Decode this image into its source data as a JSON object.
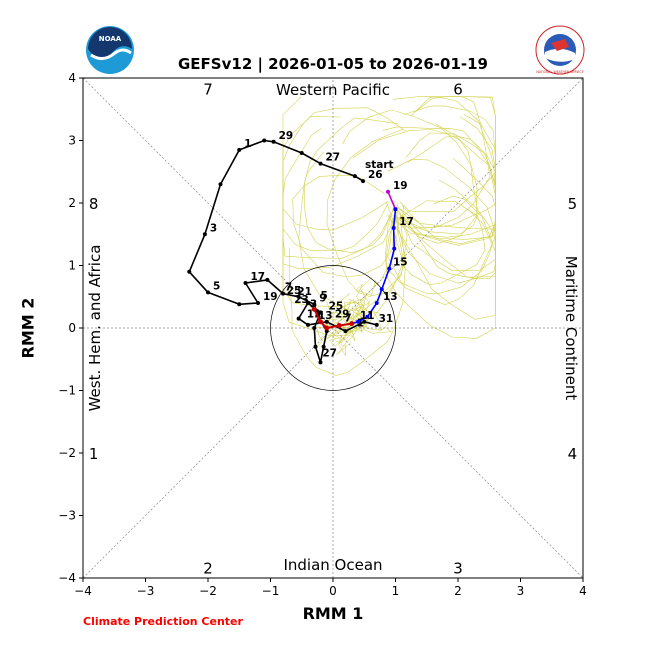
{
  "header": {
    "title": "GEFSv12 | 2026-01-05 to 2026-01-19",
    "credit": "Climate Prediction Center",
    "left_logo_text": "NOAA",
    "right_logo_text": "NATIONAL WEATHER SERVICE"
  },
  "chart_data": {
    "type": "line",
    "xlabel": "RMM 1",
    "ylabel": "RMM 2",
    "xlim": [
      -4,
      4
    ],
    "ylim": [
      -4,
      4
    ],
    "xticks": [
      "−4",
      "−3",
      "−2",
      "−1",
      "0",
      "1",
      "2",
      "3",
      "4"
    ],
    "yticks": [
      "−4",
      "−3",
      "−2",
      "−1",
      "0",
      "1",
      "2",
      "3",
      "4"
    ],
    "grid": false,
    "region_labels": {
      "top": "Western Pacific",
      "bottom": "Indian Ocean",
      "left": "West. Hem. and Africa",
      "right": "Maritime Continent"
    },
    "phase_labels": [
      {
        "text": "7",
        "x": -2.0,
        "y": 3.83
      },
      {
        "text": "6",
        "x": 2.0,
        "y": 3.83
      },
      {
        "text": "8",
        "x": -3.83,
        "y": 2.0
      },
      {
        "text": "5",
        "x": 3.83,
        "y": 2.0
      },
      {
        "text": "1",
        "x": -3.83,
        "y": -2.0
      },
      {
        "text": "4",
        "x": 3.83,
        "y": -2.0
      },
      {
        "text": "2",
        "x": -2.0,
        "y": -3.83
      },
      {
        "text": "3",
        "x": 2.0,
        "y": -3.83
      }
    ],
    "unit_circle_radius": 1,
    "colors": {
      "observed": "#000000",
      "start_segment": "#cc00cc",
      "forecast_mean": "#0000ff",
      "ensemble": "#cccc33",
      "ensemble_core": "#cc0000",
      "credit": "#ff0000"
    },
    "start_label": "start",
    "observed": {
      "points": [
        [
          0.48,
          2.35
        ],
        [
          0.35,
          2.43
        ],
        [
          -0.2,
          2.63
        ],
        [
          -0.5,
          2.8
        ],
        [
          -0.95,
          2.98
        ],
        [
          -1.1,
          3.0
        ],
        [
          -1.5,
          2.85
        ],
        [
          -1.8,
          2.3
        ],
        [
          -2.05,
          1.5
        ],
        [
          -2.3,
          0.9
        ],
        [
          -2.0,
          0.57
        ],
        [
          -1.5,
          0.38
        ],
        [
          -1.2,
          0.4
        ],
        [
          -1.4,
          0.72
        ],
        [
          -1.05,
          0.77
        ],
        [
          -0.8,
          0.55
        ],
        [
          -0.55,
          0.5
        ],
        [
          -0.3,
          0.38
        ],
        [
          -0.25,
          0.2
        ],
        [
          -0.1,
          -0.05
        ],
        [
          -0.15,
          -0.3
        ],
        [
          -0.2,
          -0.55
        ],
        [
          -0.28,
          -0.3
        ],
        [
          -0.3,
          0.0
        ],
        [
          -0.2,
          0.25
        ],
        [
          -0.4,
          0.4
        ],
        [
          -0.55,
          0.15
        ],
        [
          -0.4,
          0.05
        ],
        [
          -0.1,
          0.1
        ],
        [
          0.2,
          -0.05
        ],
        [
          0.5,
          0.1
        ],
        [
          0.7,
          0.05
        ]
      ],
      "labels": [
        {
          "text": "26",
          "x": 0.48,
          "y": 2.35
        },
        {
          "text": "27",
          "x": -0.2,
          "y": 2.63
        },
        {
          "text": "29",
          "x": -0.95,
          "y": 2.98
        },
        {
          "text": "1",
          "x": -1.5,
          "y": 2.85
        },
        {
          "text": "3",
          "x": -2.05,
          "y": 1.5
        },
        {
          "text": "5",
          "x": -2.0,
          "y": 0.57
        },
        {
          "text": "17",
          "x": -1.4,
          "y": 0.72
        },
        {
          "text": "19",
          "x": -1.2,
          "y": 0.4
        },
        {
          "text": "7",
          "x": -0.85,
          "y": 0.55
        },
        {
          "text": "25",
          "x": -0.82,
          "y": 0.5
        },
        {
          "text": "21",
          "x": -0.65,
          "y": 0.48
        },
        {
          "text": "23",
          "x": -0.7,
          "y": 0.35
        },
        {
          "text": "9",
          "x": -0.3,
          "y": 0.38
        },
        {
          "text": "5",
          "x": -0.28,
          "y": 0.42
        },
        {
          "text": "3",
          "x": -0.45,
          "y": 0.28
        },
        {
          "text": "25",
          "x": -0.15,
          "y": 0.25
        },
        {
          "text": "11",
          "x": -0.5,
          "y": 0.12
        },
        {
          "text": "13",
          "x": -0.32,
          "y": 0.1
        },
        {
          "text": "29",
          "x": -0.05,
          "y": 0.12
        },
        {
          "text": "27",
          "x": -0.25,
          "y": -0.5
        },
        {
          "text": "1",
          "x": 0.3,
          "y": -0.02
        },
        {
          "text": "31",
          "x": 0.65,
          "y": 0.05
        }
      ]
    },
    "start_segment": {
      "points": [
        [
          0.88,
          2.18
        ],
        [
          1.0,
          1.9
        ]
      ],
      "labels": [
        {
          "text": "19",
          "x": 0.88,
          "y": 2.18
        }
      ]
    },
    "forecast_mean": {
      "points": [
        [
          1.0,
          1.9
        ],
        [
          0.97,
          1.6
        ],
        [
          0.98,
          1.27
        ],
        [
          0.9,
          0.95
        ],
        [
          0.78,
          0.62
        ],
        [
          0.7,
          0.4
        ],
        [
          0.55,
          0.18
        ],
        [
          0.4,
          0.1
        ],
        [
          0.3,
          0.07
        ]
      ],
      "labels": [
        {
          "text": "17",
          "x": 0.98,
          "y": 1.6
        },
        {
          "text": "15",
          "x": 0.88,
          "y": 0.95
        },
        {
          "text": "13",
          "x": 0.72,
          "y": 0.4
        },
        {
          "text": "11",
          "x": 0.35,
          "y": 0.1
        },
        {
          "text": "7",
          "x": 0.1,
          "y": 0.06
        }
      ]
    },
    "ensemble_core": {
      "points": [
        [
          0.3,
          0.07
        ],
        [
          0.1,
          0.04
        ],
        [
          -0.1,
          0.0
        ],
        [
          -0.2,
          0.1
        ],
        [
          -0.3,
          0.3
        ]
      ]
    }
  }
}
